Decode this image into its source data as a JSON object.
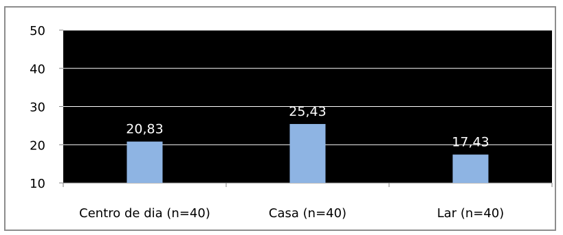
{
  "chart_data": {
    "type": "bar",
    "categories": [
      "Centro de dia (n=40)",
      "Casa (n=40)",
      "Lar (n=40)"
    ],
    "values": [
      20.83,
      25.43,
      17.43
    ],
    "data_labels": [
      "20,83",
      "25,43",
      "17,43"
    ],
    "title": "",
    "xlabel": "",
    "ylabel": "",
    "ylim": [
      10,
      50
    ],
    "yticks": [
      10,
      20,
      30,
      40,
      50
    ],
    "grid": true,
    "legend": "none",
    "colors": {
      "plot_background": "#000000",
      "bar": "#8eb4e3",
      "gridline": "#ffffff",
      "data_label": "#ffffff",
      "frame": "#8c8c8c"
    }
  }
}
